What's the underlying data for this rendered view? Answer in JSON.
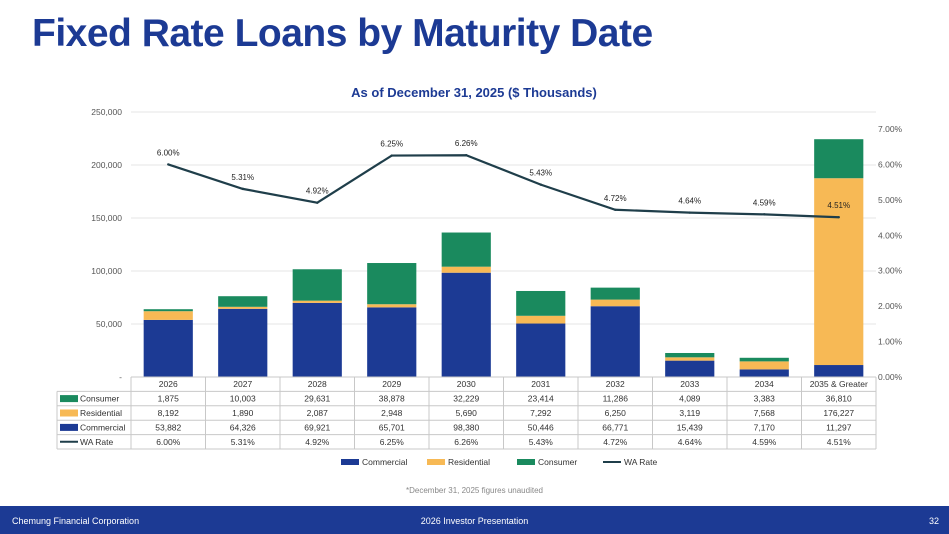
{
  "title": "Fixed Rate Loans by Maturity Date",
  "footnote": "*December 31, 2025 figures unaudited",
  "footer": {
    "left": "Chemung Financial Corporation",
    "center": "2026 Investor Presentation",
    "page": "32"
  },
  "colors": {
    "commercial": "#1c3a94",
    "residential": "#f7b955",
    "consumer": "#1a8a5e",
    "wa_rate": "#1f3e4a"
  },
  "chart_data": {
    "type": "bar",
    "stacked": true,
    "title": "As of December 31, 2025 ($ Thousands)",
    "categories": [
      "2026",
      "2027",
      "2028",
      "2029",
      "2030",
      "2031",
      "2032",
      "2033",
      "2034",
      "2035 & Greater"
    ],
    "series": [
      {
        "name": "Commercial",
        "key": "commercial",
        "values": [
          53882,
          64326,
          69921,
          65701,
          98380,
          50446,
          66771,
          15439,
          7170,
          11297
        ],
        "labels": [
          "53,882",
          "64,326",
          "69,921",
          "65,701",
          "98,380",
          "50,446",
          "66,771",
          "15,439",
          "7,170",
          "11,297"
        ]
      },
      {
        "name": "Residential",
        "key": "residential",
        "values": [
          8192,
          1890,
          2087,
          2948,
          5690,
          7292,
          6250,
          3119,
          7568,
          176227
        ],
        "labels": [
          "8,192",
          "1,890",
          "2,087",
          "2,948",
          "5,690",
          "7,292",
          "6,250",
          "3,119",
          "7,568",
          "176,227"
        ]
      },
      {
        "name": "Consumer",
        "key": "consumer",
        "values": [
          1875,
          10003,
          29631,
          38878,
          32229,
          23414,
          11286,
          4089,
          3383,
          36810
        ],
        "labels": [
          "1,875",
          "10,003",
          "29,631",
          "38,878",
          "32,229",
          "23,414",
          "11,286",
          "4,089",
          "3,383",
          "36,810"
        ]
      }
    ],
    "line": {
      "name": "WA Rate",
      "key": "wa_rate",
      "values": [
        6.0,
        5.31,
        4.92,
        6.25,
        6.26,
        5.43,
        4.72,
        4.64,
        4.59,
        4.51
      ],
      "labels": [
        "6.00%",
        "5.31%",
        "4.92%",
        "6.25%",
        "6.26%",
        "5.43%",
        "4.72%",
        "4.64%",
        "4.59%",
        "4.51%"
      ]
    },
    "y_left": {
      "min": 0,
      "max": 250000,
      "ticks": [
        0,
        50000,
        100000,
        150000,
        200000,
        250000
      ],
      "tick_labels": [
        "-",
        "50,000",
        "100,000",
        "150,000",
        "200,000",
        "250,000"
      ]
    },
    "y_right": {
      "min": 0,
      "max": 7,
      "ticks": [
        0,
        1,
        2,
        3,
        4,
        5,
        6,
        7
      ],
      "tick_labels": [
        "0.00%",
        "1.00%",
        "2.00%",
        "3.00%",
        "4.00%",
        "5.00%",
        "6.00%",
        "7.00%"
      ]
    },
    "legend": [
      "Commercial",
      "Residential",
      "Consumer",
      "WA Rate"
    ],
    "table_rows": [
      {
        "label": "Consumer",
        "key": "consumer",
        "type": "bar"
      },
      {
        "label": "Residential",
        "key": "residential",
        "type": "bar"
      },
      {
        "label": "Commercial",
        "key": "commercial",
        "type": "bar"
      },
      {
        "label": "WA Rate",
        "key": "wa_rate",
        "type": "line"
      }
    ]
  }
}
